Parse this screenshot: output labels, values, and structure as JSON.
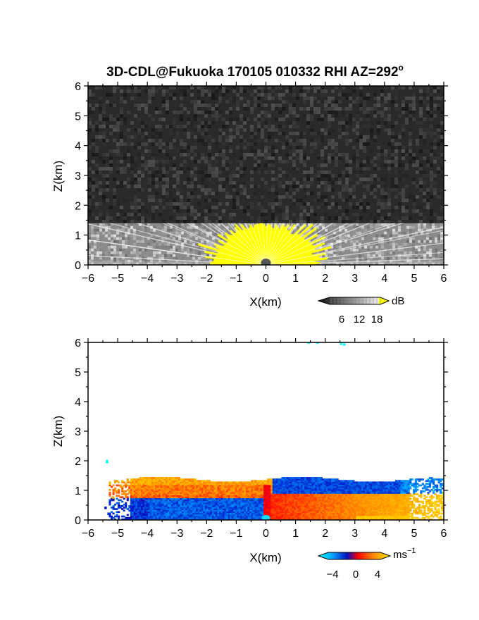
{
  "title": "3D-CDL@Fukuoka 170105 010332 RHI AZ=292",
  "title_superscript": "o",
  "chart_data": [
    {
      "type": "heatmap",
      "name": "backscatter",
      "xlabel": "X(km)",
      "ylabel": "Z(km)",
      "xlim": [
        -6,
        6
      ],
      "ylim": [
        0,
        6
      ],
      "xticks": [
        -6,
        -5,
        -4,
        -3,
        -2,
        -1,
        0,
        1,
        2,
        3,
        4,
        5,
        6
      ],
      "yticks": [
        0,
        1,
        2,
        3,
        4,
        5,
        6
      ],
      "colorbar": {
        "unit": "dB",
        "ticks": [
          6,
          12,
          18
        ],
        "range": [
          0,
          20
        ]
      },
      "layer_top_km": 1.4,
      "colors": {
        "low": "#222222",
        "high": "#ffffff",
        "saturated": "#ffff00"
      }
    },
    {
      "type": "heatmap",
      "name": "doppler_velocity",
      "xlabel": "X(km)",
      "ylabel": "Z(km)",
      "xlim": [
        -6,
        6
      ],
      "ylim": [
        0,
        6
      ],
      "xticks": [
        -6,
        -5,
        -4,
        -3,
        -2,
        -1,
        0,
        1,
        2,
        3,
        4,
        5,
        6
      ],
      "yticks": [
        0,
        1,
        2,
        3,
        4,
        5,
        6
      ],
      "colorbar": {
        "unit": "ms",
        "unit_superscript": "−1",
        "ticks": [
          "−4",
          "0",
          "4"
        ],
        "range": [
          -5,
          5
        ]
      },
      "colors": {
        "neg": "#0030ff",
        "cyan": "#00e5ff",
        "zero": "#ff0000",
        "pos": "#ffd400"
      }
    }
  ]
}
